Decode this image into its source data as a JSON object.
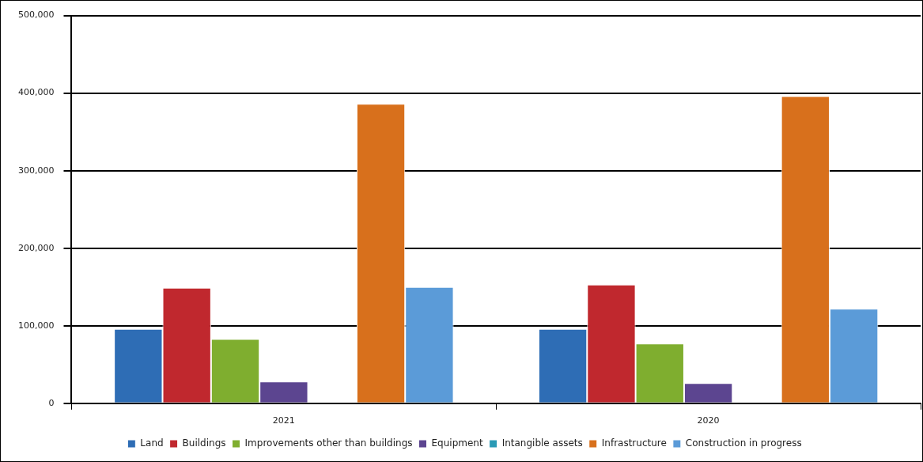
{
  "chart_data": {
    "type": "bar",
    "categories": [
      "2021",
      "2020"
    ],
    "series": [
      {
        "name": "Land",
        "color": "#2e6db5",
        "values": [
          96000,
          96000
        ]
      },
      {
        "name": "Buildings",
        "color": "#c0282e",
        "values": [
          149000,
          153000
        ]
      },
      {
        "name": "Improvements other than buildings",
        "color": "#7fae2f",
        "values": [
          83000,
          77000
        ]
      },
      {
        "name": "Equipment",
        "color": "#5c4590",
        "values": [
          28000,
          26000
        ]
      },
      {
        "name": "Intangible assets",
        "color": "#2a9ab5",
        "values": [
          null,
          null
        ]
      },
      {
        "name": "Infrastructure",
        "color": "#d8701c",
        "values": [
          386000,
          396000
        ]
      },
      {
        "name": "Construction in progress",
        "color": "#5b9bd8",
        "values": [
          150000,
          122000
        ]
      }
    ],
    "ylim": [
      0,
      500000
    ],
    "yticks": [
      {
        "value": 0,
        "label": "0"
      },
      {
        "value": 100000,
        "label": "100,000"
      },
      {
        "value": 200000,
        "label": "200,000"
      },
      {
        "value": 300000,
        "label": "300,000"
      },
      {
        "value": 400000,
        "label": "400,000"
      },
      {
        "value": 500000,
        "label": "500,000"
      }
    ],
    "grid": "y",
    "legend": "bottom"
  }
}
